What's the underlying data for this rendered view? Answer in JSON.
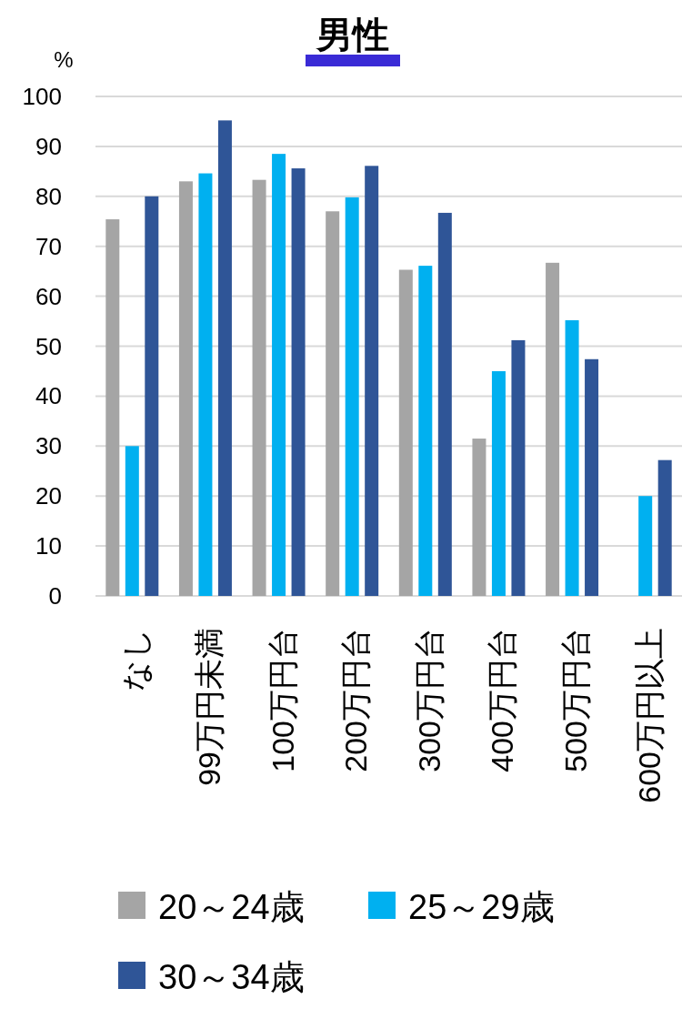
{
  "chart_data": {
    "type": "bar",
    "title": "男性",
    "ylabel": "%",
    "categories": [
      "なし",
      "99万円未満",
      "100万円台",
      "200万円台",
      "300万円台",
      "400万円台",
      "500万円台",
      "600万円以上"
    ],
    "series": [
      {
        "name": "20～24歳",
        "color": "#a5a5a5",
        "values": [
          75.4,
          83.0,
          83.3,
          77.0,
          65.3,
          31.5,
          66.7,
          null
        ]
      },
      {
        "name": "25～29歳",
        "color": "#00b0f0",
        "values": [
          30.0,
          84.6,
          88.5,
          79.8,
          66.1,
          45.0,
          55.2,
          20.0
        ]
      },
      {
        "name": "30～34歳",
        "color": "#2f5597",
        "values": [
          80.0,
          95.2,
          85.6,
          86.1,
          76.7,
          51.2,
          47.4,
          27.2
        ]
      }
    ],
    "ylim": [
      0,
      100
    ],
    "yticks": [
      0,
      10,
      20,
      30,
      40,
      50,
      60,
      70,
      80,
      90,
      100
    ],
    "grid": "y",
    "legend": "bottom"
  }
}
